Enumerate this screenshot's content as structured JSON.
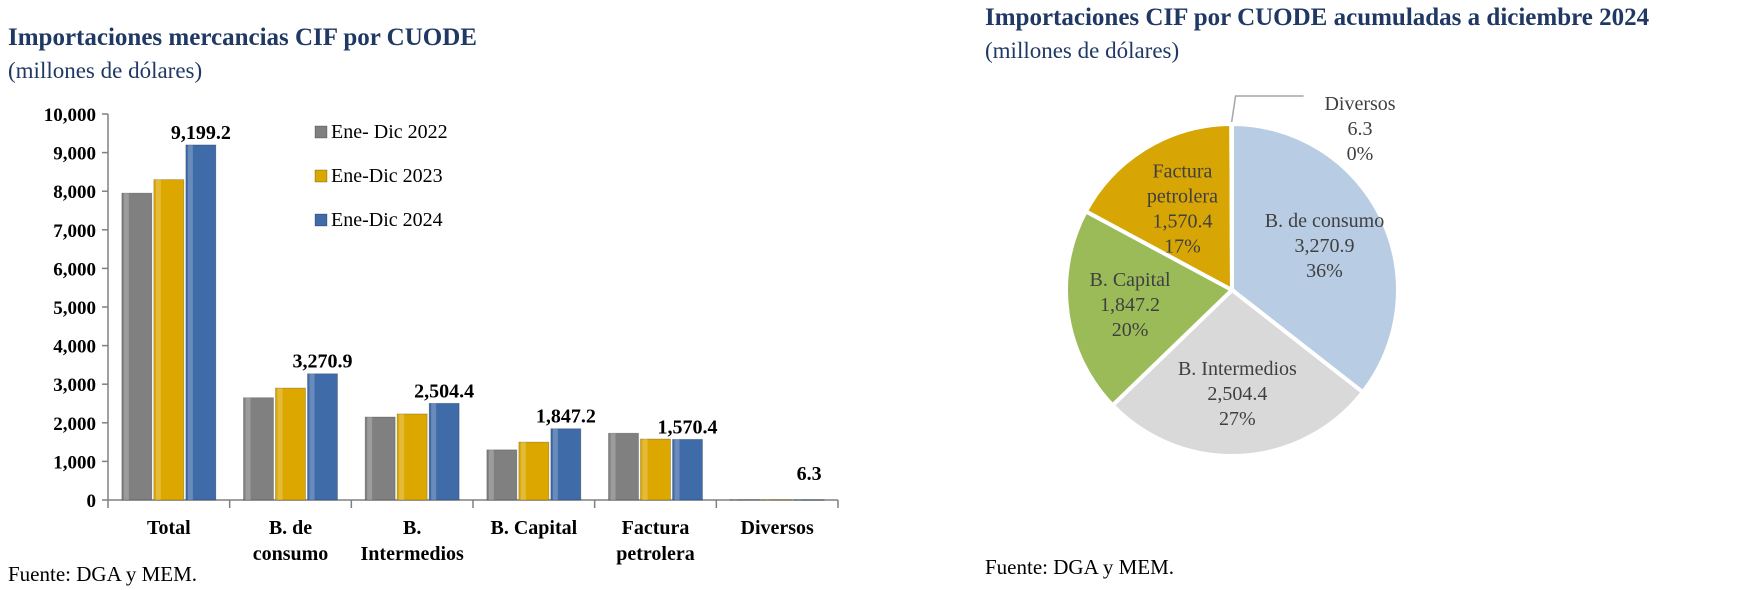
{
  "left": {
    "title": "Importaciones mercancias CIF por CUODE",
    "subtitle": "(millones de dólares)",
    "source": "Fuente: DGA y MEM."
  },
  "right": {
    "title": "Importaciones CIF por CUODE acumuladas a diciembre 2024",
    "subtitle": "(millones de dólares)",
    "source": "Fuente: DGA y MEM."
  },
  "colors": {
    "s2022": "#808080",
    "s2023": "#dca800",
    "s2024": "#3f6ba8",
    "pie_consumo": "#b8cce4",
    "pie_intermedios": "#d9d9d9",
    "pie_capital": "#9bbb59",
    "pie_petrolera": "#d7a504",
    "pie_diversos": "#f2f2f2"
  },
  "chart_data": [
    {
      "type": "bar",
      "categories": [
        [
          "Total"
        ],
        [
          "B. de",
          "consumo"
        ],
        [
          "B.",
          "Intermedios"
        ],
        [
          "B. Capital"
        ],
        [
          "Factura",
          "petrolera"
        ],
        [
          "Diversos"
        ]
      ],
      "series": [
        {
          "name": "Ene- Dic 2022",
          "values": [
            7950,
            2650,
            2150,
            1300,
            1730,
            10
          ]
        },
        {
          "name": "Ene-Dic 2023",
          "values": [
            8300,
            2900,
            2230,
            1500,
            1580,
            10
          ]
        },
        {
          "name": "Ene-Dic 2024",
          "values": [
            9199.2,
            3270.9,
            2504.4,
            1847.2,
            1570.4,
            6.3
          ]
        }
      ],
      "data_labels": [
        "9,199.2",
        "3,270.9",
        "2,504.4",
        "1,847.2",
        "1,570.4",
        "6.3"
      ],
      "ylim": [
        0,
        10000
      ],
      "yticks": [
        0,
        1000,
        2000,
        3000,
        4000,
        5000,
        6000,
        7000,
        8000,
        9000,
        10000
      ],
      "ytick_labels": [
        "0",
        "1,000",
        "2,000",
        "3,000",
        "4,000",
        "5,000",
        "6,000",
        "7,000",
        "8,000",
        "9,000",
        "10,000"
      ],
      "legend_position": "top-right"
    },
    {
      "type": "pie",
      "slices": [
        {
          "label": [
            "B. de consumo"
          ],
          "value": 3270.9,
          "value_label": "3,270.9",
          "pct_label": "36%",
          "color_key": "pie_consumo"
        },
        {
          "label": [
            "B. Intermedios"
          ],
          "value": 2504.4,
          "value_label": "2,504.4",
          "pct_label": "27%",
          "color_key": "pie_intermedios"
        },
        {
          "label": [
            "B. Capital"
          ],
          "value": 1847.2,
          "value_label": "1,847.2",
          "pct_label": "20%",
          "color_key": "pie_capital"
        },
        {
          "label": [
            "Factura",
            "petrolera"
          ],
          "value": 1570.4,
          "value_label": "1,570.4",
          "pct_label": "17%",
          "color_key": "pie_petrolera"
        },
        {
          "label": [
            "Diversos"
          ],
          "value": 6.3,
          "value_label": "6.3",
          "pct_label": "0%",
          "color_key": "pie_diversos"
        }
      ]
    }
  ]
}
